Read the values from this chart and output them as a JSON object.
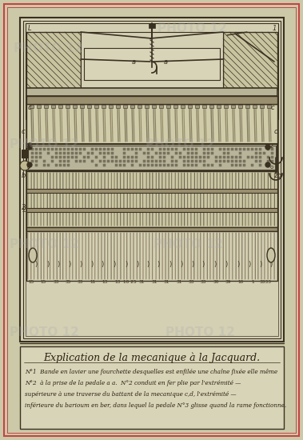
{
  "bg_color": "#ccc9a8",
  "paper_color": "#d8d4b8",
  "outer_border_color": "#c44444",
  "line_color": "#5a4e30",
  "dark_line": "#3a3020",
  "title_text": "Explication de la mecanique à la Jacquard.",
  "body_text1": "N°1  Bande en lavier une fourchette desquelles est enfilée une chaîne fixée elle même",
  "body_text2": "N°2  à la prise de la pedale a a.  N°2 conduit en fer plie par l'extrémité —",
  "body_text3": "supérieure à une traverse du battant de la mecanique c,d, l'extrémité —",
  "body_text4": "inférieure du barioum en ber, dans lequel la pedale N°3 glisse quand la rame fonctionne.",
  "fig_width": 3.79,
  "fig_height": 5.5,
  "dpi": 100
}
